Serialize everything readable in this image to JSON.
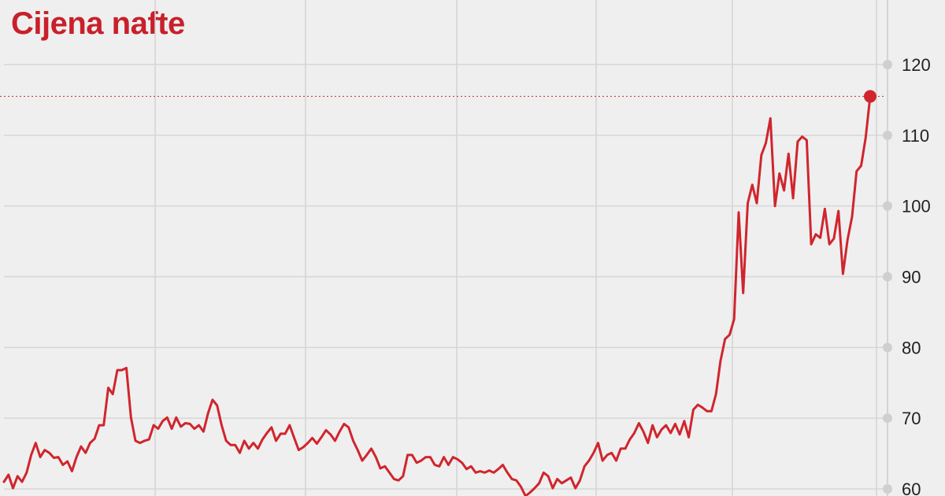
{
  "chart_data": {
    "type": "line",
    "title": "Cijena nafte",
    "xlabel": "",
    "ylabel": "",
    "ylim": [
      60,
      120
    ],
    "yticks": [
      "60",
      "70",
      "80",
      "90",
      "100",
      "110",
      "120"
    ],
    "grid": true,
    "y_axis_side": "right",
    "line_color": "#d0252d",
    "reference_line": {
      "value": 115.5,
      "style": "dotted"
    },
    "last_point_marker": true,
    "series": [
      {
        "values": [
          61.0,
          62.0,
          60.1,
          61.8,
          61.0,
          62.3,
          64.8,
          66.5,
          64.5,
          65.5,
          65.1,
          64.4,
          64.5,
          63.4,
          63.9,
          62.5,
          64.5,
          66.0,
          65.1,
          66.5,
          67.1,
          69.0,
          69.0,
          74.3,
          73.4,
          76.8,
          76.8,
          77.1,
          70.1,
          66.8,
          66.5,
          66.8,
          67.0,
          69.0,
          68.5,
          69.6,
          70.1,
          68.5,
          70.1,
          68.8,
          69.3,
          69.2,
          68.5,
          69.0,
          68.1,
          70.7,
          72.6,
          71.8,
          69.0,
          66.8,
          66.2,
          66.2,
          65.1,
          66.8,
          65.7,
          66.5,
          65.7,
          67.0,
          67.9,
          68.7,
          66.8,
          67.8,
          67.8,
          69.0,
          67.2,
          65.5,
          65.9,
          66.5,
          67.2,
          66.4,
          67.3,
          68.3,
          67.7,
          66.8,
          68.1,
          69.2,
          68.7,
          66.8,
          65.5,
          64.0,
          64.8,
          65.7,
          64.5,
          62.9,
          63.2,
          62.3,
          61.4,
          61.2,
          61.8,
          64.8,
          64.8,
          63.7,
          64.0,
          64.5,
          64.5,
          63.4,
          63.2,
          64.5,
          63.4,
          64.5,
          64.2,
          63.7,
          62.8,
          63.2,
          62.3,
          62.5,
          62.3,
          62.6,
          62.3,
          62.8,
          63.4,
          62.3,
          61.4,
          61.2,
          60.3,
          59.0,
          59.5,
          60.1,
          60.8,
          62.3,
          61.8,
          60.1,
          61.4,
          60.8,
          61.2,
          61.6,
          60.1,
          61.2,
          63.2,
          64.0,
          65.1,
          66.5,
          64.0,
          64.8,
          65.1,
          64.0,
          65.7,
          65.7,
          67.0,
          67.9,
          69.3,
          68.1,
          66.5,
          69.0,
          67.3,
          68.4,
          69.0,
          67.9,
          69.2,
          67.7,
          69.6,
          67.3,
          71.2,
          71.9,
          71.5,
          71.0,
          71.0,
          73.4,
          78.1,
          81.2,
          81.8,
          84.0,
          99.1,
          87.7,
          100.4,
          103.0,
          100.4,
          107.2,
          108.9,
          112.4,
          100.0,
          104.6,
          102.2,
          107.4,
          101.1,
          109.1,
          109.8,
          109.3,
          94.6,
          96.0,
          95.5,
          99.6,
          94.6,
          95.4,
          99.3,
          90.4,
          95.2,
          98.5,
          104.9,
          105.7,
          109.6,
          115.5
        ]
      }
    ]
  }
}
